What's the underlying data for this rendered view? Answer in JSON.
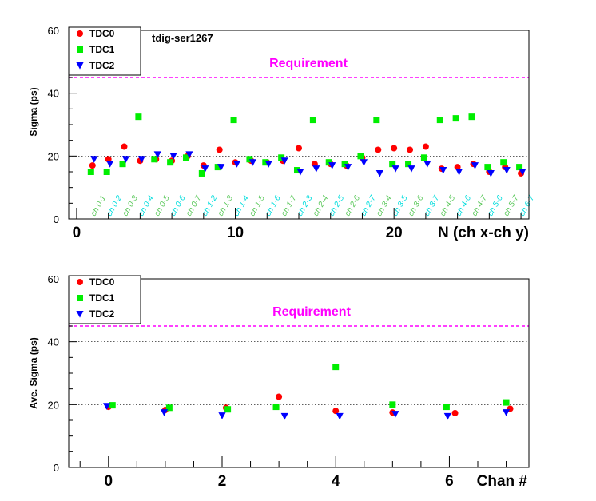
{
  "chart_data": [
    {
      "type": "scatter",
      "title": "",
      "annotation": "tdig-ser1267",
      "xlabel": "N (ch x-ch y)",
      "ylabel": "Sigma (ps)",
      "xlim": [
        -0.5,
        28.5
      ],
      "ylim": [
        0,
        60
      ],
      "x_ticks": [
        0,
        10,
        20
      ],
      "y_ticks": [
        0,
        20,
        40,
        60
      ],
      "grid_y": true,
      "legend": "top-left",
      "requirement": {
        "label": "Requirement",
        "value": 45,
        "color": "#ff00ff"
      },
      "pair_labels": [
        "ch 0-1",
        "ch 0-2",
        "ch 0-3",
        "ch 0-4",
        "ch 0-5",
        "ch 0-6",
        "ch 0-7",
        "ch 1-2",
        "ch 1-3",
        "ch 1-4",
        "ch 1-5",
        "ch 1-6",
        "ch 1-7",
        "ch 2-3",
        "ch 2-4",
        "ch 2-5",
        "ch 2-6",
        "ch 2-7",
        "ch 3-4",
        "ch 3-5",
        "ch 3-6",
        "ch 3-7",
        "ch 4-5",
        "ch 4-6",
        "ch 4-7",
        "ch 5-6",
        "ch 5-7",
        "ch 6-7"
      ],
      "pair_label_colors": [
        "#5ac85a",
        "#00dddd"
      ],
      "series": [
        {
          "name": "TDC0",
          "marker": "circle",
          "color": "#ff0000",
          "x": [
            1,
            2,
            3,
            4,
            5,
            6,
            7,
            8,
            9,
            10,
            11,
            12,
            13,
            14,
            15,
            16,
            17,
            18,
            19,
            20,
            21,
            22,
            23,
            24,
            25,
            26,
            27,
            28
          ],
          "values": [
            17,
            19,
            23,
            18.5,
            19,
            18.5,
            20,
            17,
            22,
            18,
            18.5,
            18,
            18.5,
            22.5,
            17.5,
            17.5,
            17,
            19.5,
            22,
            22.5,
            22,
            23,
            16,
            16.5,
            17.5,
            15,
            16.5,
            14.5
          ]
        },
        {
          "name": "TDC1",
          "marker": "square",
          "color": "#00ee00",
          "x": [
            0.9,
            1.9,
            2.9,
            3.9,
            4.9,
            5.9,
            6.9,
            7.9,
            8.9,
            9.9,
            10.9,
            11.9,
            12.9,
            13.9,
            14.9,
            15.9,
            16.9,
            17.9,
            18.9,
            19.9,
            20.9,
            21.9,
            22.9,
            23.9,
            24.9,
            25.9,
            26.9,
            27.9
          ],
          "values": [
            15,
            15,
            17.5,
            32.5,
            19,
            18,
            19.5,
            14.5,
            16.5,
            31.5,
            19,
            18,
            19.5,
            15.5,
            31.5,
            18,
            17.5,
            20,
            31.5,
            17.5,
            17.5,
            19.5,
            31.5,
            32,
            32.5,
            16.5,
            18,
            16.5
          ]
        },
        {
          "name": "TDC2",
          "marker": "triangle-down",
          "color": "#0000ff",
          "x": [
            1.1,
            2.1,
            3.1,
            4.1,
            5.1,
            6.1,
            7.1,
            8.1,
            9.1,
            10.1,
            11.1,
            12.1,
            13.1,
            14.1,
            15.1,
            16.1,
            17.1,
            18.1,
            19.1,
            20.1,
            21.1,
            22.1,
            23.1,
            24.1,
            25.1,
            26.1,
            27.1,
            28.1
          ],
          "values": [
            19,
            17.5,
            19,
            19,
            20.5,
            20,
            20.5,
            16,
            16.5,
            17.5,
            18,
            17.5,
            18.5,
            15,
            16,
            17,
            16.5,
            18,
            14.5,
            16,
            16,
            17.5,
            15.5,
            15,
            17,
            14.5,
            15.5,
            15
          ]
        }
      ]
    },
    {
      "type": "scatter",
      "title": "",
      "xlabel": "Chan #",
      "ylabel": "Ave. Sigma (ps)",
      "xlim": [
        -0.7,
        7.4
      ],
      "ylim": [
        0,
        60
      ],
      "x_ticks": [
        0,
        2,
        4,
        6
      ],
      "y_ticks": [
        0,
        20,
        40,
        60
      ],
      "grid_y": true,
      "legend": "top-left",
      "requirement": {
        "label": "Requirement",
        "value": 45,
        "color": "#ff00ff"
      },
      "series": [
        {
          "name": "TDC0",
          "marker": "circle",
          "color": "#ff0000",
          "x": [
            0,
            1,
            2.07,
            3,
            4,
            5,
            6.1,
            7.07
          ],
          "values": [
            19.3,
            18.3,
            19,
            22.5,
            18,
            17.5,
            17.3,
            18.7
          ]
        },
        {
          "name": "TDC1",
          "marker": "square",
          "color": "#00ee00",
          "x": [
            0.07,
            1.07,
            2.1,
            2.95,
            4,
            5,
            5.95,
            7
          ],
          "values": [
            19.8,
            19,
            18.5,
            19.3,
            32,
            20,
            19.3,
            20.7
          ]
        },
        {
          "name": "TDC2",
          "marker": "triangle-down",
          "color": "#0000ff",
          "x": [
            -0.03,
            0.98,
            2,
            3.1,
            4.07,
            5.05,
            5.97,
            7
          ],
          "values": [
            19.5,
            17.5,
            16.5,
            16.3,
            16.3,
            17,
            16.3,
            17.5
          ]
        }
      ]
    }
  ],
  "legend_entries": [
    "TDC0",
    "TDC1",
    "TDC2"
  ]
}
